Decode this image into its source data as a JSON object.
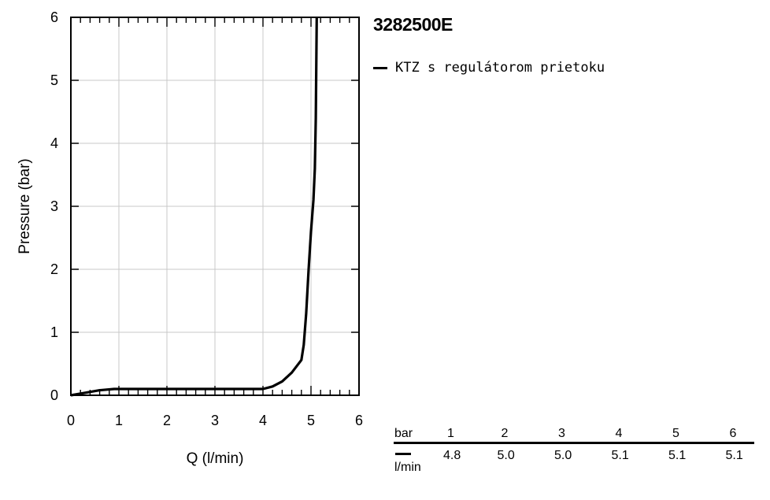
{
  "chart_data": {
    "type": "line",
    "title": "3282500E",
    "xlabel": "Q (l/min)",
    "ylabel": "Pressure (bar)",
    "xlim": [
      0,
      6
    ],
    "ylim": [
      0,
      6
    ],
    "x_ticks": [
      "0",
      "1",
      "2",
      "3",
      "4",
      "5",
      "6"
    ],
    "y_ticks": [
      "0",
      "1",
      "2",
      "3",
      "4",
      "5",
      "6"
    ],
    "grid": true,
    "legend_position": "top-right",
    "series": [
      {
        "name": "KTZ s regulátorom prietoku",
        "color": "#000000",
        "points": [
          [
            0,
            0
          ],
          [
            0.3,
            0.04
          ],
          [
            0.6,
            0.08
          ],
          [
            0.9,
            0.1
          ],
          [
            1.5,
            0.1
          ],
          [
            2.5,
            0.1
          ],
          [
            3.5,
            0.1
          ],
          [
            4.0,
            0.1
          ],
          [
            4.2,
            0.14
          ],
          [
            4.4,
            0.22
          ],
          [
            4.6,
            0.36
          ],
          [
            4.8,
            0.56
          ],
          [
            4.85,
            0.8
          ],
          [
            4.9,
            1.3
          ],
          [
            4.95,
            2.0
          ],
          [
            5.0,
            2.6
          ],
          [
            5.05,
            3.1
          ],
          [
            5.08,
            3.6
          ],
          [
            5.1,
            4.4
          ],
          [
            5.12,
            6.0
          ]
        ]
      }
    ]
  },
  "flow_table": {
    "pressure_header": "bar",
    "unit": "l/min",
    "pressures": [
      "1",
      "2",
      "3",
      "4",
      "5",
      "6"
    ],
    "flows": [
      "4.8",
      "5.0",
      "5.0",
      "5.1",
      "5.1",
      "5.1"
    ]
  }
}
